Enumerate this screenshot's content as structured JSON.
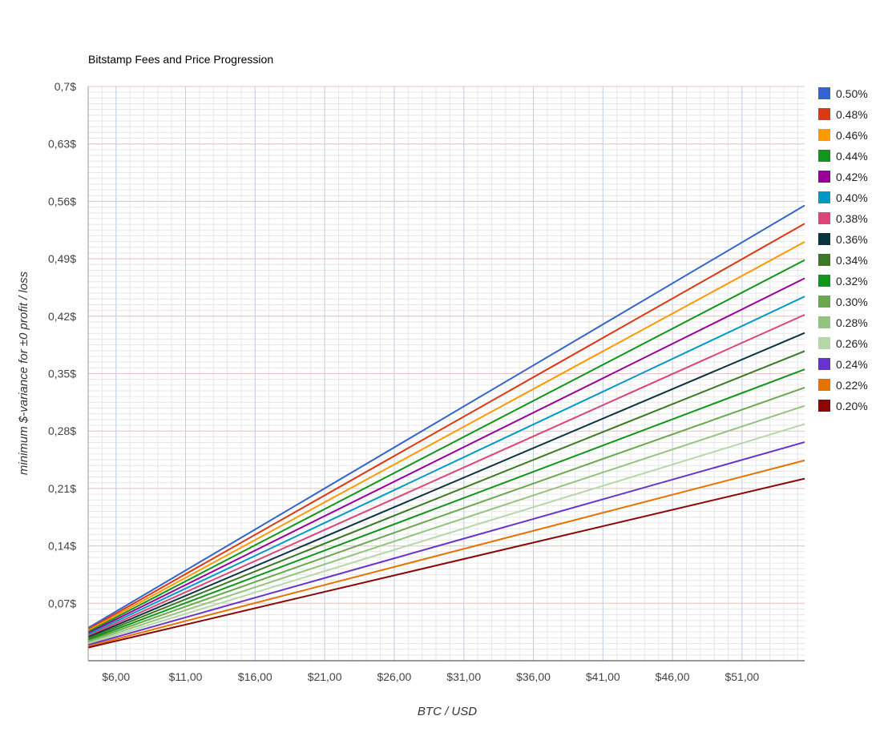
{
  "chart_data": {
    "type": "line",
    "title": "Bitstamp Fees and Price Progression",
    "xlabel": "BTC / USD",
    "ylabel": "minimum $-variance for ±0 profit / loss",
    "x_range": [
      4.0,
      55.5
    ],
    "ylim": [
      0,
      0.7
    ],
    "x_ticks": [
      6,
      11,
      16,
      21,
      26,
      31,
      36,
      41,
      46,
      51
    ],
    "x_tick_labels": [
      "$6,00",
      "$11,00",
      "$16,00",
      "$21,00",
      "$26,00",
      "$31,00",
      "$36,00",
      "$41,00",
      "$46,00",
      "$51,00"
    ],
    "y_ticks": [
      0.07,
      0.14,
      0.21,
      0.28,
      0.35,
      0.42,
      0.49,
      0.56,
      0.63,
      0.7
    ],
    "y_tick_labels": [
      "0,07$",
      "0,14$",
      "0,21$",
      "0,28$",
      "0,35$",
      "0,42$",
      "0,49$",
      "0,56$",
      "0,63$",
      "0,7$"
    ],
    "grid": true,
    "legend_position": "right",
    "x": [
      4.0,
      55.5
    ],
    "series": [
      {
        "name": "0.50%",
        "color": "#3366cc",
        "values": [
          0.04,
          0.555
        ]
      },
      {
        "name": "0.48%",
        "color": "#dc3912",
        "values": [
          0.0384,
          0.5328
        ]
      },
      {
        "name": "0.46%",
        "color": "#ff9900",
        "values": [
          0.0368,
          0.5106
        ]
      },
      {
        "name": "0.44%",
        "color": "#109618",
        "values": [
          0.0352,
          0.4884
        ]
      },
      {
        "name": "0.42%",
        "color": "#990099",
        "values": [
          0.0336,
          0.4662
        ]
      },
      {
        "name": "0.40%",
        "color": "#0099c6",
        "values": [
          0.032,
          0.444
        ]
      },
      {
        "name": "0.38%",
        "color": "#dd4477",
        "values": [
          0.0304,
          0.4218
        ]
      },
      {
        "name": "0.36%",
        "color": "#0c3340",
        "values": [
          0.0288,
          0.3996
        ]
      },
      {
        "name": "0.34%",
        "color": "#3b7a22",
        "values": [
          0.0272,
          0.3774
        ]
      },
      {
        "name": "0.32%",
        "color": "#109618",
        "values": [
          0.0256,
          0.3552
        ]
      },
      {
        "name": "0.30%",
        "color": "#6aa84f",
        "values": [
          0.024,
          0.333
        ]
      },
      {
        "name": "0.28%",
        "color": "#93c47d",
        "values": [
          0.0224,
          0.3108
        ]
      },
      {
        "name": "0.26%",
        "color": "#b6d7a8",
        "values": [
          0.0208,
          0.2886
        ]
      },
      {
        "name": "0.24%",
        "color": "#6633cc",
        "values": [
          0.0192,
          0.2664
        ]
      },
      {
        "name": "0.22%",
        "color": "#e67300",
        "values": [
          0.0176,
          0.2442
        ]
      },
      {
        "name": "0.20%",
        "color": "#8b0707",
        "values": [
          0.016,
          0.222
        ]
      }
    ]
  }
}
